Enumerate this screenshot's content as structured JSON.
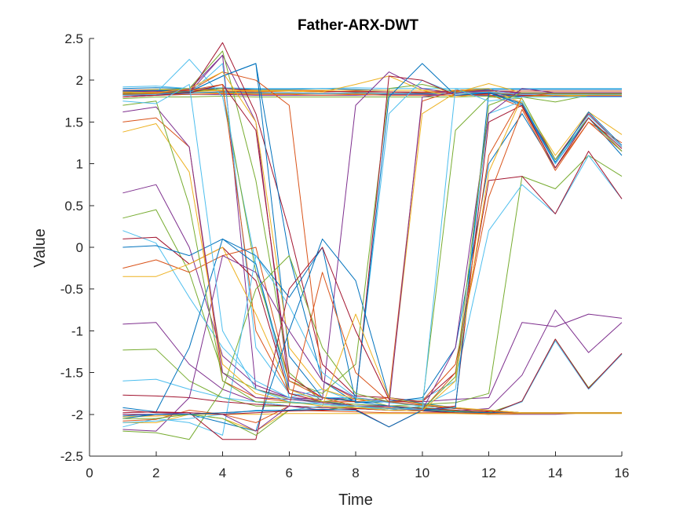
{
  "chart_data": {
    "type": "line",
    "title": "Father-ARX-DWT",
    "xlabel": "Time",
    "ylabel": "Value",
    "xlim": [
      0,
      16
    ],
    "ylim": [
      -2.5,
      2.5
    ],
    "xticks": [
      0,
      2,
      4,
      6,
      8,
      10,
      12,
      14,
      16
    ],
    "yticks": [
      -2.5,
      -2,
      -1.5,
      -1,
      -0.5,
      0,
      0.5,
      1,
      1.5,
      2,
      2.5
    ],
    "xtick_labels": [
      "0",
      "2",
      "4",
      "6",
      "8",
      "10",
      "12",
      "14",
      "16"
    ],
    "ytick_labels": [
      "-2.5",
      "-2",
      "-1.5",
      "-1",
      "-0.5",
      "0",
      "0.5",
      "1",
      "1.5",
      "2",
      "2.5"
    ],
    "grid": false,
    "box": "left-bottom",
    "legend": "none",
    "colors": [
      "#0072BD",
      "#D95319",
      "#EDB120",
      "#7E2F8E",
      "#77AC30",
      "#4DBEEE",
      "#A2142F"
    ],
    "x": [
      1,
      2,
      3,
      4,
      5,
      6,
      7,
      8,
      9,
      10,
      11,
      12,
      13,
      14,
      15,
      16
    ],
    "series": [
      {
        "values": [
          1.9,
          1.91,
          1.9,
          1.9,
          1.89,
          1.89,
          1.9,
          1.89,
          1.88,
          1.88,
          1.88,
          1.89,
          1.89,
          1.89,
          1.89,
          1.89
        ]
      },
      {
        "values": [
          1.87,
          1.88,
          1.88,
          1.87,
          1.86,
          1.87,
          1.87,
          1.86,
          1.86,
          1.86,
          1.87,
          1.87,
          1.87,
          1.87,
          1.87,
          1.87
        ]
      },
      {
        "values": [
          1.84,
          1.85,
          1.85,
          1.85,
          1.84,
          1.84,
          1.84,
          1.84,
          1.84,
          1.84,
          1.84,
          1.84,
          1.84,
          1.84,
          1.84,
          1.84
        ]
      },
      {
        "values": [
          1.82,
          1.82,
          1.83,
          1.83,
          1.82,
          1.82,
          1.82,
          1.82,
          1.83,
          1.83,
          1.82,
          1.82,
          1.81,
          1.81,
          1.81,
          1.81
        ]
      },
      {
        "values": [
          1.78,
          1.8,
          1.8,
          1.81,
          1.8,
          1.8,
          1.8,
          1.8,
          1.8,
          1.8,
          1.8,
          1.81,
          1.8,
          1.74,
          1.82,
          1.83
        ]
      },
      {
        "values": [
          1.92,
          1.93,
          1.9,
          1.91,
          1.9,
          1.9,
          1.9,
          1.91,
          1.9,
          1.9,
          1.9,
          1.9,
          1.9,
          1.9,
          1.9,
          1.9
        ]
      },
      {
        "values": [
          1.86,
          1.87,
          1.88,
          1.9,
          1.88,
          1.87,
          1.86,
          1.87,
          1.86,
          1.85,
          1.86,
          1.86,
          1.72,
          1.05,
          1.6,
          1.2
        ]
      },
      {
        "values": [
          1.83,
          1.84,
          1.85,
          1.86,
          1.85,
          1.85,
          1.84,
          1.85,
          1.84,
          1.84,
          1.84,
          1.85,
          1.7,
          1.0,
          1.55,
          1.15
        ]
      },
      {
        "values": [
          1.8,
          1.82,
          1.83,
          1.84,
          1.83,
          1.83,
          1.82,
          1.83,
          1.82,
          1.82,
          1.82,
          1.83,
          1.68,
          0.95,
          1.5,
          1.25
        ]
      },
      {
        "values": [
          1.88,
          1.89,
          1.89,
          1.88,
          1.88,
          1.88,
          1.88,
          1.88,
          1.88,
          1.88,
          1.88,
          1.9,
          1.73,
          1.1,
          1.62,
          1.35
        ]
      },
      {
        "values": [
          1.88,
          1.88,
          1.89,
          2.3,
          1.5,
          -1.7,
          -1.8,
          -1.82,
          -1.85,
          -1.85,
          -1.82,
          -1.8,
          -0.9,
          -0.95,
          -0.8,
          -0.85
        ]
      },
      {
        "values": [
          1.86,
          1.88,
          1.9,
          2.35,
          0.8,
          -1.5,
          -1.85,
          -1.8,
          -1.9,
          -1.88,
          -1.86,
          -1.75,
          0.85,
          0.7,
          1.1,
          0.85
        ]
      },
      {
        "values": [
          1.84,
          1.85,
          2.25,
          1.8,
          -0.2,
          -1.8,
          -1.7,
          -1.85,
          -1.84,
          -1.82,
          -1.6,
          0.2,
          0.75,
          0.4,
          1.1,
          0.58
        ]
      },
      {
        "values": [
          1.8,
          1.82,
          1.85,
          2.45,
          1.6,
          0.2,
          -1.4,
          -1.78,
          -1.8,
          -1.85,
          -1.5,
          0.8,
          0.85,
          0.4,
          1.15,
          0.58
        ]
      },
      {
        "values": [
          1.82,
          1.84,
          1.86,
          2.05,
          2.2,
          -0.1,
          -1.6,
          -1.86,
          -1.85,
          -1.8,
          -1.2,
          1.0,
          1.6,
          0.95,
          1.55,
          1.1
        ]
      },
      {
        "values": [
          1.85,
          1.86,
          1.87,
          2.1,
          2.0,
          1.7,
          -1.6,
          -1.82,
          -1.85,
          -1.84,
          -1.4,
          0.6,
          1.65,
          0.92,
          1.5,
          1.15
        ]
      },
      {
        "values": [
          1.84,
          1.85,
          1.86,
          1.88,
          1.87,
          1.87,
          1.86,
          1.95,
          2.05,
          1.88,
          1.8,
          1.85,
          1.82,
          1.8,
          1.82,
          1.82
        ]
      },
      {
        "values": [
          1.86,
          1.87,
          1.85,
          2.3,
          -1.7,
          -1.8,
          -1.82,
          1.7,
          2.1,
          1.9,
          1.84,
          1.86,
          1.84,
          1.84,
          1.84,
          1.84
        ]
      },
      {
        "values": [
          1.84,
          1.85,
          1.86,
          1.9,
          -0.3,
          -1.6,
          -1.75,
          -1.4,
          1.9,
          1.95,
          1.86,
          1.88,
          1.85,
          1.85,
          1.85,
          1.85
        ]
      },
      {
        "values": [
          1.82,
          1.83,
          1.84,
          2.2,
          -1.2,
          -1.75,
          -1.8,
          -1.8,
          1.6,
          2.0,
          1.84,
          1.86,
          1.83,
          1.83,
          1.83,
          1.83
        ]
      },
      {
        "values": [
          1.8,
          1.82,
          1.85,
          1.95,
          1.4,
          -1.55,
          -1.8,
          -1.85,
          2.05,
          2.0,
          1.82,
          1.84,
          1.82,
          1.82,
          1.82,
          1.82
        ]
      },
      {
        "values": [
          1.87,
          1.88,
          1.86,
          2.05,
          2.2,
          -1.3,
          -1.8,
          -1.84,
          1.8,
          2.2,
          1.82,
          1.85,
          1.8,
          1.8,
          1.8,
          1.8
        ]
      },
      {
        "values": [
          1.83,
          1.84,
          1.88,
          1.95,
          -1.0,
          -1.75,
          -1.85,
          -1.85,
          -1.8,
          1.75,
          1.88,
          1.88,
          1.85,
          1.85,
          1.85,
          1.85
        ]
      },
      {
        "values": [
          1.86,
          1.85,
          1.9,
          2.1,
          1.5,
          -1.2,
          -1.7,
          -1.82,
          -1.85,
          1.6,
          1.85,
          1.96,
          1.85,
          1.84,
          1.84,
          1.84
        ]
      },
      {
        "values": [
          0.65,
          0.75,
          0.0,
          -1.3,
          -1.65,
          -1.8,
          -1.85,
          -1.9,
          -1.92,
          -1.95,
          -1.96,
          -2.0,
          -2.0,
          -2.0,
          -1.98,
          -1.98
        ]
      },
      {
        "values": [
          0.35,
          0.45,
          -0.3,
          -1.5,
          -1.7,
          -1.82,
          -1.85,
          -1.88,
          -1.9,
          -1.92,
          -1.95,
          -1.98,
          -1.98,
          -1.98,
          -1.98,
          -1.98
        ]
      },
      {
        "values": [
          0.2,
          0.05,
          -0.6,
          -1.2,
          -1.6,
          -1.8,
          -1.88,
          -1.9,
          -1.92,
          -1.95,
          -1.96,
          -1.98,
          -1.98,
          -1.98,
          -1.98,
          -1.98
        ]
      },
      {
        "values": [
          0.1,
          0.12,
          -0.2,
          0.0,
          -0.4,
          -1.75,
          -1.85,
          -1.9,
          -1.9,
          -1.93,
          -1.95,
          -1.97,
          -1.98,
          -1.98,
          -1.98,
          -1.98
        ]
      },
      {
        "values": [
          0.0,
          0.02,
          -0.1,
          0.1,
          -0.2,
          -1.7,
          -1.85,
          -1.9,
          -1.92,
          -1.94,
          -1.96,
          -1.98,
          -1.98,
          -1.98,
          -1.98,
          -1.98
        ]
      },
      {
        "values": [
          -0.25,
          -0.15,
          -0.3,
          -0.1,
          0.0,
          -1.6,
          -1.8,
          -1.9,
          -1.92,
          -1.95,
          -1.96,
          -1.98,
          -1.98,
          -1.98,
          -1.98,
          -1.98
        ]
      },
      {
        "values": [
          -0.35,
          -0.35,
          -0.2,
          0.0,
          -0.8,
          -1.7,
          -1.85,
          -1.92,
          -1.93,
          -1.95,
          -1.96,
          -1.98,
          -1.98,
          -1.98,
          -1.98,
          -1.98
        ]
      },
      {
        "values": [
          -0.92,
          -0.9,
          -1.4,
          -1.7,
          -1.85,
          -1.9,
          -1.92,
          -1.93,
          -1.95,
          -1.96,
          -1.96,
          -1.93,
          -1.53,
          -0.75,
          -1.26,
          -0.9
        ]
      },
      {
        "values": [
          -1.23,
          -1.22,
          -1.6,
          -1.8,
          -1.9,
          -1.9,
          -1.92,
          -1.93,
          -1.95,
          -1.96,
          -1.96,
          -1.98,
          -1.85,
          -1.1,
          -1.68,
          -1.28
        ]
      },
      {
        "values": [
          -1.6,
          -1.58,
          -1.7,
          -1.8,
          -1.85,
          -1.9,
          -1.92,
          -1.93,
          -1.95,
          -1.96,
          -1.98,
          -2.0,
          -1.85,
          -1.12,
          -1.7,
          -1.28
        ]
      },
      {
        "values": [
          -1.77,
          -1.78,
          -1.8,
          -1.85,
          -1.88,
          -1.9,
          -1.92,
          -1.93,
          -1.95,
          -1.96,
          -1.98,
          -2.0,
          -1.84,
          -1.1,
          -1.69,
          -1.27
        ]
      },
      {
        "values": [
          -1.92,
          -1.97,
          -1.2,
          0.1,
          -0.1,
          -0.6,
          0.0,
          -1.85,
          -1.9,
          -1.95,
          -1.97,
          -1.98,
          -1.98,
          -1.98,
          -1.98,
          -1.98
        ]
      },
      {
        "values": [
          -2.0,
          -2.02,
          -2.0,
          -1.98,
          -1.96,
          -1.95,
          -1.96,
          -1.97,
          -1.98,
          -1.98,
          -1.98,
          -1.99,
          -1.98,
          -1.98,
          -1.98,
          -1.98
        ]
      },
      {
        "values": [
          -2.03,
          -2.02,
          -2.0,
          -2.0,
          -2.0,
          -1.99,
          -1.99,
          -1.99,
          -1.99,
          -1.99,
          -1.99,
          -2.0,
          -1.99,
          -1.99,
          -1.99,
          -1.99
        ]
      },
      {
        "values": [
          -2.18,
          -2.2,
          -1.8,
          -0.1,
          -0.3,
          -1.0,
          -1.6,
          -1.8,
          -1.85,
          -1.9,
          -1.93,
          -1.95,
          -1.98,
          -1.98,
          -1.98,
          -1.98
        ]
      },
      {
        "values": [
          -2.2,
          -2.22,
          -2.3,
          -1.7,
          -0.5,
          -0.1,
          -1.2,
          -1.75,
          -1.85,
          -1.9,
          -1.93,
          -1.95,
          -1.98,
          -1.98,
          -1.98,
          -1.98
        ]
      },
      {
        "values": [
          -2.15,
          -2.05,
          -2.1,
          -2.25,
          -0.1,
          -0.7,
          -1.5,
          -1.8,
          -1.86,
          -1.9,
          -1.93,
          -1.96,
          -1.98,
          -1.98,
          -1.98,
          -1.98
        ]
      },
      {
        "values": [
          -1.95,
          -1.98,
          -1.98,
          -2.3,
          -2.3,
          -0.5,
          0.0,
          -1.0,
          -1.82,
          -1.88,
          -1.92,
          -1.96,
          -1.98,
          -1.98,
          -1.98,
          -1.98
        ]
      },
      {
        "values": [
          -2.05,
          -2.0,
          -2.0,
          -2.1,
          -2.2,
          -1.0,
          0.1,
          -0.4,
          -1.8,
          -1.87,
          -1.92,
          -1.96,
          -1.98,
          -1.98,
          -1.98,
          -1.98
        ]
      },
      {
        "values": [
          -2.08,
          -2.06,
          -1.95,
          -2.0,
          -2.1,
          -1.9,
          -0.3,
          -1.5,
          -1.85,
          -1.89,
          -1.93,
          -1.96,
          -1.98,
          -1.98,
          -1.98,
          -1.98
        ]
      },
      {
        "values": [
          -2.1,
          -2.1,
          -2.0,
          -2.05,
          -2.2,
          -1.95,
          -1.9,
          -0.8,
          -1.8,
          -1.88,
          -1.92,
          -1.95,
          -1.98,
          -1.98,
          -1.98,
          -1.98
        ]
      },
      {
        "values": [
          -2.0,
          -2.0,
          -1.98,
          -2.0,
          -2.2,
          -1.9,
          -1.95,
          -1.9,
          -1.9,
          1.8,
          1.85,
          1.88,
          1.85,
          1.85,
          1.85,
          1.85
        ]
      },
      {
        "values": [
          -2.05,
          -2.05,
          -2.0,
          -2.05,
          -2.25,
          -1.95,
          -1.95,
          -1.9,
          -1.95,
          -1.9,
          1.4,
          1.8,
          1.78,
          1.05,
          1.55,
          1.15
        ]
      },
      {
        "values": [
          -2.1,
          -2.08,
          -2.05,
          -2.0,
          -1.95,
          -1.95,
          -1.9,
          -1.9,
          -1.95,
          -1.9,
          -1.7,
          1.6,
          1.75,
          1.0,
          1.58,
          1.2
        ]
      },
      {
        "values": [
          -1.98,
          -1.97,
          -1.98,
          -2.0,
          -1.98,
          -1.96,
          -1.95,
          -1.94,
          -2.15,
          -1.95,
          -1.9,
          1.5,
          1.7,
          0.95,
          1.55,
          1.18
        ]
      },
      {
        "values": [
          -2.02,
          -2.0,
          -2.0,
          -1.98,
          -1.96,
          -1.95,
          -1.94,
          -1.95,
          -2.15,
          -1.95,
          -1.92,
          1.85,
          1.72,
          1.02,
          1.62,
          1.22
        ]
      },
      {
        "values": [
          1.5,
          1.55,
          1.2,
          -1.6,
          -1.8,
          -1.85,
          -1.88,
          -1.9,
          -1.92,
          -1.95,
          -1.5,
          1.1,
          1.8,
          1.85,
          1.85,
          1.85
        ]
      },
      {
        "values": [
          1.38,
          1.48,
          0.9,
          -1.4,
          -1.75,
          -1.85,
          -1.9,
          -1.92,
          -1.95,
          -1.96,
          -1.6,
          0.9,
          1.8,
          1.82,
          1.82,
          1.82
        ]
      },
      {
        "values": [
          1.62,
          1.68,
          1.2,
          -1.5,
          -1.8,
          -1.82,
          -1.86,
          -1.9,
          -1.93,
          -1.95,
          -1.2,
          1.6,
          1.9,
          1.85,
          1.85,
          1.85
        ]
      },
      {
        "values": [
          1.7,
          1.75,
          0.5,
          -1.6,
          -1.85,
          -1.86,
          -1.88,
          -1.9,
          -1.93,
          -1.94,
          -1.55,
          1.7,
          1.85,
          1.84,
          1.84,
          1.84
        ]
      },
      {
        "values": [
          1.75,
          1.72,
          1.95,
          -1.0,
          -1.7,
          -1.85,
          -1.88,
          -1.9,
          -1.93,
          -1.94,
          1.9,
          1.75,
          1.8,
          1.8,
          1.8,
          1.8
        ]
      }
    ]
  }
}
